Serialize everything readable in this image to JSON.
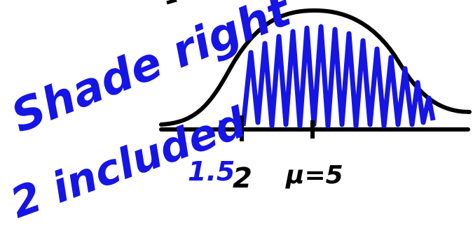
{
  "annotation": {
    "line1": "Shade right",
    "line2": "2 included"
  },
  "axis_labels": {
    "left": "1.5",
    "boundary": "2",
    "mean": "μ=5"
  }
}
